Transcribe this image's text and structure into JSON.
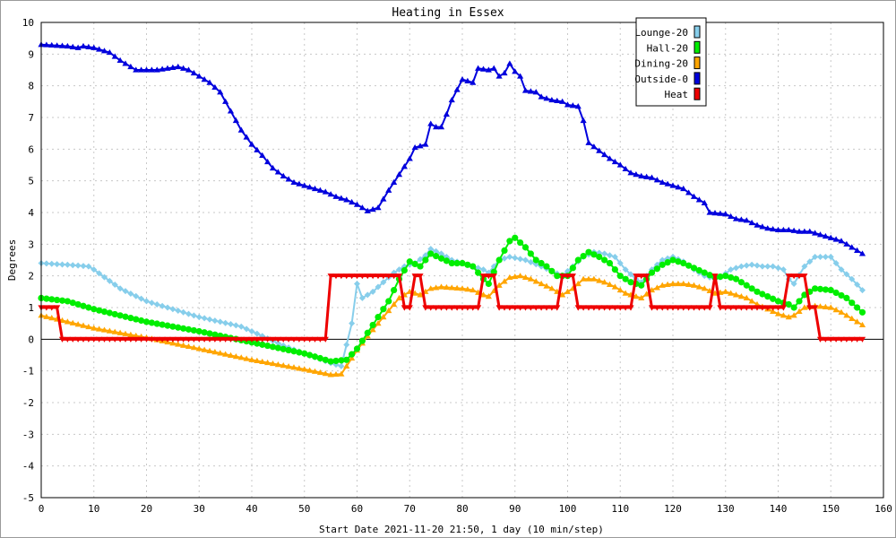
{
  "chart_data": {
    "type": "line",
    "title": "Heating in Essex",
    "xlabel": "Start Date 2021-11-20 21:50, 1 day (10 min/step)",
    "ylabel": "Degrees",
    "xlim": [
      0,
      160
    ],
    "ylim": [
      -5,
      10
    ],
    "x_ticks": [
      0,
      10,
      20,
      30,
      40,
      50,
      60,
      70,
      80,
      90,
      100,
      110,
      120,
      130,
      140,
      150,
      160
    ],
    "y_ticks": [
      -5,
      -4,
      -3,
      -2,
      -1,
      0,
      1,
      2,
      3,
      4,
      5,
      6,
      7,
      8,
      9,
      10
    ],
    "grid": true,
    "legend_position": "top-right",
    "series": [
      {
        "name": "Lounge-20",
        "color": "#87ceeb",
        "marker": "diamond",
        "points": [
          [
            0,
            2.4
          ],
          [
            5,
            2.35
          ],
          [
            9,
            2.3
          ],
          [
            10,
            2.2
          ],
          [
            15,
            1.6
          ],
          [
            20,
            1.2
          ],
          [
            30,
            0.7
          ],
          [
            38,
            0.4
          ],
          [
            42,
            0.1
          ],
          [
            46,
            -0.2
          ],
          [
            50,
            -0.45
          ],
          [
            55,
            -0.75
          ],
          [
            57,
            -0.85
          ],
          [
            59,
            0.5
          ],
          [
            60,
            1.75
          ],
          [
            61,
            1.3
          ],
          [
            63,
            1.5
          ],
          [
            65,
            1.8
          ],
          [
            67,
            2.1
          ],
          [
            69,
            2.3
          ],
          [
            71,
            2.4
          ],
          [
            73,
            2.65
          ],
          [
            74,
            2.85
          ],
          [
            76,
            2.7
          ],
          [
            78,
            2.5
          ],
          [
            80,
            2.4
          ],
          [
            82,
            2.3
          ],
          [
            84,
            2.2
          ],
          [
            85,
            2.1
          ],
          [
            87,
            2.5
          ],
          [
            89,
            2.6
          ],
          [
            92,
            2.5
          ],
          [
            95,
            2.3
          ],
          [
            97,
            2.15
          ],
          [
            99,
            2.0
          ],
          [
            101,
            2.3
          ],
          [
            103,
            2.6
          ],
          [
            105,
            2.75
          ],
          [
            107,
            2.7
          ],
          [
            109,
            2.6
          ],
          [
            111,
            2.2
          ],
          [
            113,
            1.9
          ],
          [
            114,
            1.8
          ],
          [
            116,
            2.2
          ],
          [
            118,
            2.5
          ],
          [
            120,
            2.6
          ],
          [
            122,
            2.45
          ],
          [
            124,
            2.2
          ],
          [
            126,
            2.0
          ],
          [
            128,
            1.9
          ],
          [
            129,
            1.95
          ],
          [
            131,
            2.2
          ],
          [
            133,
            2.3
          ],
          [
            135,
            2.35
          ],
          [
            137,
            2.3
          ],
          [
            139,
            2.3
          ],
          [
            141,
            2.2
          ],
          [
            142,
            1.9
          ],
          [
            143,
            1.75
          ],
          [
            145,
            2.3
          ],
          [
            147,
            2.6
          ],
          [
            150,
            2.6
          ],
          [
            152,
            2.2
          ],
          [
            154,
            1.9
          ],
          [
            156,
            1.55
          ]
        ]
      },
      {
        "name": "Hall-20",
        "color": "#00ee00",
        "marker": "circle",
        "points": [
          [
            0,
            1.3
          ],
          [
            5,
            1.2
          ],
          [
            10,
            0.95
          ],
          [
            20,
            0.55
          ],
          [
            30,
            0.25
          ],
          [
            40,
            -0.1
          ],
          [
            50,
            -0.45
          ],
          [
            55,
            -0.7
          ],
          [
            58,
            -0.65
          ],
          [
            60,
            -0.3
          ],
          [
            62,
            0.2
          ],
          [
            64,
            0.7
          ],
          [
            66,
            1.2
          ],
          [
            68,
            1.9
          ],
          [
            70,
            2.45
          ],
          [
            72,
            2.3
          ],
          [
            74,
            2.7
          ],
          [
            76,
            2.55
          ],
          [
            78,
            2.4
          ],
          [
            80,
            2.4
          ],
          [
            82,
            2.3
          ],
          [
            84,
            1.9
          ],
          [
            85,
            1.75
          ],
          [
            87,
            2.5
          ],
          [
            89,
            3.1
          ],
          [
            90,
            3.2
          ],
          [
            92,
            2.9
          ],
          [
            94,
            2.5
          ],
          [
            96,
            2.3
          ],
          [
            98,
            2.0
          ],
          [
            100,
            2.0
          ],
          [
            102,
            2.5
          ],
          [
            104,
            2.75
          ],
          [
            106,
            2.6
          ],
          [
            108,
            2.4
          ],
          [
            110,
            2.0
          ],
          [
            112,
            1.8
          ],
          [
            114,
            1.7
          ],
          [
            116,
            2.1
          ],
          [
            118,
            2.35
          ],
          [
            120,
            2.5
          ],
          [
            122,
            2.4
          ],
          [
            124,
            2.25
          ],
          [
            126,
            2.1
          ],
          [
            128,
            1.95
          ],
          [
            130,
            2.0
          ],
          [
            132,
            1.9
          ],
          [
            134,
            1.7
          ],
          [
            136,
            1.5
          ],
          [
            138,
            1.35
          ],
          [
            140,
            1.2
          ],
          [
            142,
            1.1
          ],
          [
            143,
            1.0
          ],
          [
            145,
            1.4
          ],
          [
            147,
            1.6
          ],
          [
            150,
            1.55
          ],
          [
            153,
            1.3
          ],
          [
            155,
            1.0
          ],
          [
            156,
            0.85
          ]
        ]
      },
      {
        "name": "Dining-20",
        "color": "#ffa500",
        "marker": "triangle",
        "points": [
          [
            0,
            0.75
          ],
          [
            5,
            0.55
          ],
          [
            10,
            0.35
          ],
          [
            15,
            0.2
          ],
          [
            20,
            0.05
          ],
          [
            30,
            -0.3
          ],
          [
            40,
            -0.65
          ],
          [
            50,
            -0.95
          ],
          [
            55,
            -1.12
          ],
          [
            57,
            -1.1
          ],
          [
            60,
            -0.35
          ],
          [
            62,
            0.1
          ],
          [
            64,
            0.5
          ],
          [
            66,
            0.9
          ],
          [
            68,
            1.3
          ],
          [
            70,
            1.5
          ],
          [
            72,
            1.4
          ],
          [
            74,
            1.6
          ],
          [
            76,
            1.65
          ],
          [
            80,
            1.6
          ],
          [
            82,
            1.55
          ],
          [
            84,
            1.4
          ],
          [
            85,
            1.35
          ],
          [
            87,
            1.7
          ],
          [
            89,
            1.95
          ],
          [
            91,
            2.0
          ],
          [
            93,
            1.9
          ],
          [
            95,
            1.75
          ],
          [
            97,
            1.6
          ],
          [
            99,
            1.4
          ],
          [
            101,
            1.6
          ],
          [
            103,
            1.9
          ],
          [
            105,
            1.9
          ],
          [
            107,
            1.8
          ],
          [
            109,
            1.65
          ],
          [
            111,
            1.45
          ],
          [
            113,
            1.35
          ],
          [
            114,
            1.3
          ],
          [
            116,
            1.55
          ],
          [
            118,
            1.7
          ],
          [
            120,
            1.75
          ],
          [
            122,
            1.75
          ],
          [
            124,
            1.7
          ],
          [
            126,
            1.6
          ],
          [
            128,
            1.45
          ],
          [
            130,
            1.5
          ],
          [
            132,
            1.4
          ],
          [
            134,
            1.3
          ],
          [
            136,
            1.1
          ],
          [
            138,
            0.95
          ],
          [
            140,
            0.8
          ],
          [
            142,
            0.7
          ],
          [
            143,
            0.75
          ],
          [
            145,
            1.0
          ],
          [
            147,
            1.05
          ],
          [
            150,
            1.0
          ],
          [
            152,
            0.85
          ],
          [
            154,
            0.65
          ],
          [
            156,
            0.45
          ]
        ]
      },
      {
        "name": "Outside-0",
        "color": "#0000dd",
        "marker": "triangle",
        "points": [
          [
            0,
            9.3
          ],
          [
            5,
            9.25
          ],
          [
            7,
            9.2
          ],
          [
            8,
            9.25
          ],
          [
            10,
            9.2
          ],
          [
            13,
            9.05
          ],
          [
            15,
            8.8
          ],
          [
            17,
            8.6
          ],
          [
            18,
            8.5
          ],
          [
            22,
            8.5
          ],
          [
            24,
            8.55
          ],
          [
            26,
            8.6
          ],
          [
            28,
            8.5
          ],
          [
            30,
            8.3
          ],
          [
            32,
            8.1
          ],
          [
            34,
            7.8
          ],
          [
            36,
            7.2
          ],
          [
            38,
            6.6
          ],
          [
            40,
            6.15
          ],
          [
            42,
            5.8
          ],
          [
            44,
            5.4
          ],
          [
            46,
            5.15
          ],
          [
            48,
            4.95
          ],
          [
            50,
            4.85
          ],
          [
            52,
            4.75
          ],
          [
            54,
            4.65
          ],
          [
            56,
            4.5
          ],
          [
            58,
            4.4
          ],
          [
            60,
            4.25
          ],
          [
            62,
            4.05
          ],
          [
            64,
            4.15
          ],
          [
            66,
            4.7
          ],
          [
            68,
            5.2
          ],
          [
            70,
            5.7
          ],
          [
            71,
            6.05
          ],
          [
            73,
            6.15
          ],
          [
            74,
            6.8
          ],
          [
            75,
            6.7
          ],
          [
            76,
            6.7
          ],
          [
            77,
            7.1
          ],
          [
            78,
            7.55
          ],
          [
            80,
            8.2
          ],
          [
            82,
            8.1
          ],
          [
            83,
            8.55
          ],
          [
            85,
            8.5
          ],
          [
            86,
            8.55
          ],
          [
            87,
            8.3
          ],
          [
            88,
            8.4
          ],
          [
            89,
            8.7
          ],
          [
            90,
            8.45
          ],
          [
            91,
            8.3
          ],
          [
            92,
            7.85
          ],
          [
            94,
            7.8
          ],
          [
            95,
            7.65
          ],
          [
            97,
            7.55
          ],
          [
            99,
            7.5
          ],
          [
            100,
            7.4
          ],
          [
            102,
            7.35
          ],
          [
            103,
            6.9
          ],
          [
            104,
            6.2
          ],
          [
            106,
            5.95
          ],
          [
            108,
            5.7
          ],
          [
            110,
            5.5
          ],
          [
            112,
            5.25
          ],
          [
            114,
            5.15
          ],
          [
            116,
            5.1
          ],
          [
            118,
            4.95
          ],
          [
            120,
            4.85
          ],
          [
            122,
            4.75
          ],
          [
            124,
            4.5
          ],
          [
            126,
            4.3
          ],
          [
            127,
            4.0
          ],
          [
            130,
            3.95
          ],
          [
            132,
            3.8
          ],
          [
            134,
            3.75
          ],
          [
            136,
            3.6
          ],
          [
            138,
            3.5
          ],
          [
            140,
            3.45
          ],
          [
            142,
            3.45
          ],
          [
            144,
            3.4
          ],
          [
            146,
            3.4
          ],
          [
            148,
            3.3
          ],
          [
            150,
            3.2
          ],
          [
            152,
            3.1
          ],
          [
            154,
            2.9
          ],
          [
            156,
            2.7
          ]
        ]
      },
      {
        "name": "Heat",
        "color": "#ee0000",
        "marker": "triangle-down",
        "points": [
          [
            0,
            1
          ],
          [
            3,
            1
          ],
          [
            4,
            0
          ],
          [
            54,
            0
          ],
          [
            55,
            2
          ],
          [
            68,
            2
          ],
          [
            69,
            1
          ],
          [
            70,
            1
          ],
          [
            71,
            2
          ],
          [
            72,
            2
          ],
          [
            73,
            1
          ],
          [
            83,
            1
          ],
          [
            84,
            2
          ],
          [
            86,
            2
          ],
          [
            87,
            1
          ],
          [
            98,
            1
          ],
          [
            99,
            2
          ],
          [
            101,
            2
          ],
          [
            102,
            1
          ],
          [
            112,
            1
          ],
          [
            113,
            2
          ],
          [
            115,
            2
          ],
          [
            116,
            1
          ],
          [
            127,
            1
          ],
          [
            128,
            2
          ],
          [
            129,
            1
          ],
          [
            141,
            1
          ],
          [
            142,
            2
          ],
          [
            145,
            2
          ],
          [
            146,
            1
          ],
          [
            147,
            1
          ],
          [
            148,
            0
          ],
          [
            156,
            0
          ]
        ]
      }
    ]
  }
}
